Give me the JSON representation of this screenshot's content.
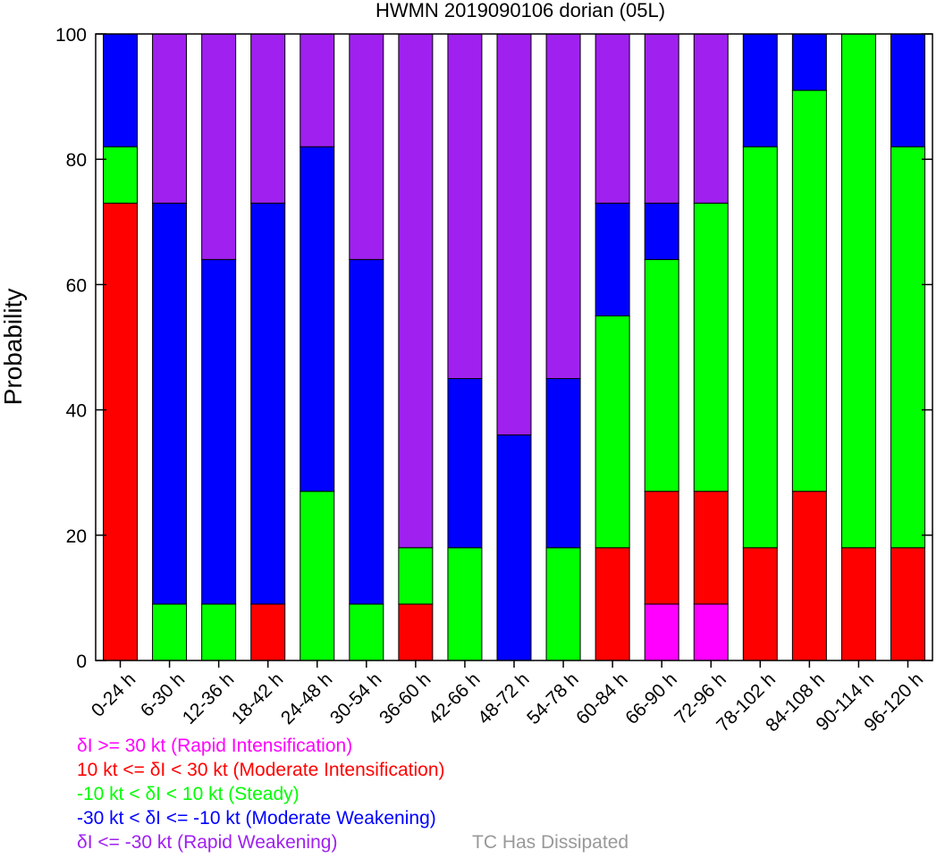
{
  "chart_data": {
    "type": "bar",
    "stacked": true,
    "title": "HWMN 2019090106 dorian (05L)",
    "xlabel": "",
    "ylabel": "Probability",
    "ylim": [
      0,
      100
    ],
    "yticks": [
      0,
      20,
      40,
      60,
      80,
      100
    ],
    "grid": false,
    "categories": [
      "0-24 h",
      "6-30 h",
      "12-36 h",
      "18-42 h",
      "24-48 h",
      "30-54 h",
      "36-60 h",
      "42-66 h",
      "48-72 h",
      "54-78 h",
      "60-84 h",
      "66-90 h",
      "72-96 h",
      "78-102 h",
      "84-108 h",
      "90-114 h",
      "96-120 h"
    ],
    "series": [
      {
        "name": "δI >= 30 kt (Rapid Intensification)",
        "color": "#ff00ff",
        "values": [
          0,
          0,
          0,
          0,
          0,
          0,
          0,
          0,
          0,
          0,
          0,
          9,
          9,
          0,
          0,
          0,
          0
        ]
      },
      {
        "name": "10 kt <= δI < 30 kt (Moderate Intensification)",
        "color": "#ff0000",
        "values": [
          73,
          0,
          0,
          9,
          0,
          0,
          9,
          0,
          0,
          0,
          18,
          18,
          18,
          18,
          27,
          18,
          18
        ]
      },
      {
        "name": "-10 kt < δI < 10 kt (Steady)",
        "color": "#00ff00",
        "values": [
          9,
          9,
          9,
          0,
          27,
          9,
          9,
          18,
          0,
          18,
          37,
          37,
          46,
          64,
          64,
          82,
          64
        ]
      },
      {
        "name": "-30 kt < δI <= -10 kt (Moderate Weakening)",
        "color": "#0000ff",
        "values": [
          18,
          64,
          55,
          64,
          55,
          55,
          0,
          27,
          36,
          27,
          18,
          9,
          0,
          18,
          9,
          0,
          18
        ]
      },
      {
        "name": "δI <= -30 kt (Rapid Weakening)",
        "color": "#a020f0",
        "values": [
          0,
          27,
          36,
          27,
          18,
          36,
          82,
          55,
          64,
          55,
          27,
          27,
          27,
          0,
          0,
          0,
          0
        ]
      }
    ],
    "extra_legend": {
      "name": "TC Has Dissipated",
      "color": "#999999"
    },
    "legend_placement": "bottom-left"
  }
}
